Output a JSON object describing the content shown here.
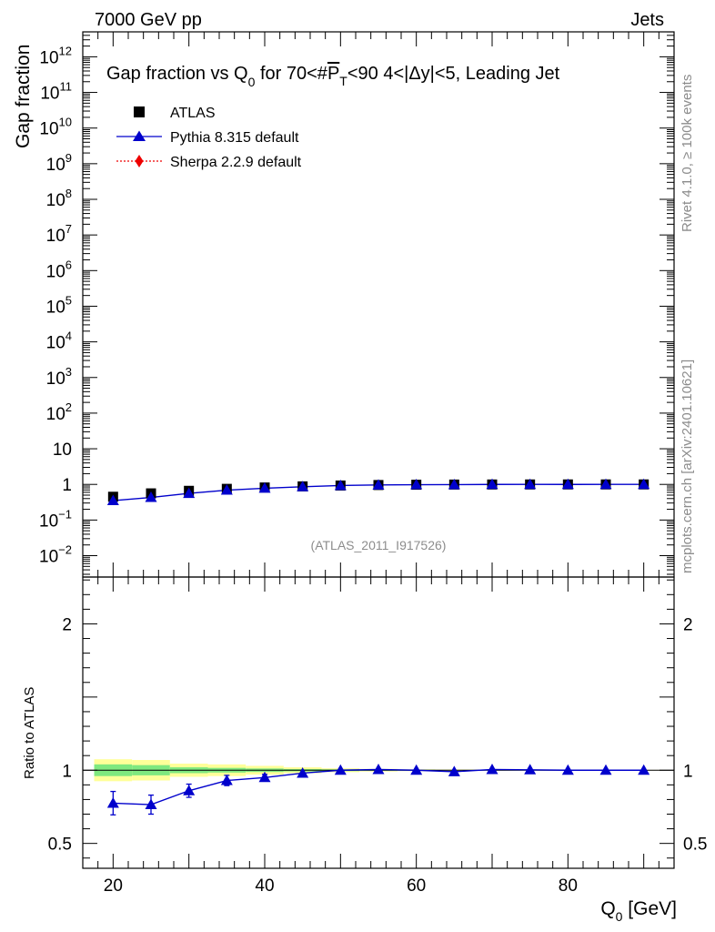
{
  "header": {
    "left": "7000 GeV pp",
    "right": "Jets"
  },
  "chart_data": {
    "type": "scatter",
    "title_parts": {
      "a": "Gap fraction vs Q",
      "sub0": "0",
      "b": " for 70<#",
      "p": "P",
      "t": "T",
      "c": "<90  4<|Δy|<5, Leading Jet"
    },
    "ylabel_main": "Gap fraction",
    "ylabel_ratio": "Ratio to ATLAS",
    "xlabel_parts": {
      "a": "Q",
      "sub": "0",
      "b": " [GeV]"
    },
    "xlim": [
      16,
      94
    ],
    "ylim_main_log10": [
      -2.6,
      12.7
    ],
    "ylim_ratio": [
      0.33,
      2.32
    ],
    "watermark": "(ATLAS_2011_I917526)",
    "side_text_top": "Rivet 4.1.0, ≥ 100k events",
    "side_text_bottom": "mcplots.cern.ch [arXiv:2401.10621]",
    "x_ticks": [
      "20",
      "40",
      "60",
      "80"
    ],
    "x_tick_values": [
      20,
      40,
      60,
      80
    ],
    "main_y_tick_labels": [
      {
        "exp": -2,
        "base": "10",
        "sup": "−2"
      },
      {
        "exp": -1,
        "base": "10",
        "sup": "−1"
      },
      {
        "exp": 0,
        "base": "1",
        "sup": ""
      },
      {
        "exp": 1,
        "base": "10",
        "sup": ""
      },
      {
        "exp": 2,
        "base": "10",
        "sup": "2"
      },
      {
        "exp": 3,
        "base": "10",
        "sup": "3"
      },
      {
        "exp": 4,
        "base": "10",
        "sup": "4"
      },
      {
        "exp": 5,
        "base": "10",
        "sup": "5"
      },
      {
        "exp": 6,
        "base": "10",
        "sup": "6"
      },
      {
        "exp": 7,
        "base": "10",
        "sup": "7"
      },
      {
        "exp": 8,
        "base": "10",
        "sup": "8"
      },
      {
        "exp": 9,
        "base": "10",
        "sup": "9"
      },
      {
        "exp": 10,
        "base": "10",
        "sup": "10"
      },
      {
        "exp": 11,
        "base": "10",
        "sup": "11"
      },
      {
        "exp": 12,
        "base": "10",
        "sup": "12"
      }
    ],
    "ratio_y_ticks": [
      {
        "value": 0.5,
        "label": "0.5"
      },
      {
        "value": 1,
        "label": "1"
      },
      {
        "value": 2,
        "label": "2"
      }
    ],
    "legend": [
      {
        "name": "ATLAS",
        "color": "#000000",
        "marker": "square"
      },
      {
        "name": "Pythia 8.315 default",
        "color": "#0000cc",
        "marker": "triangle"
      },
      {
        "name": "Sherpa 2.2.9 default",
        "color": "#ee0000",
        "marker": "diamond"
      }
    ],
    "x": [
      20,
      25,
      30,
      35,
      40,
      45,
      50,
      55,
      60,
      65,
      70,
      75,
      80,
      85,
      90
    ],
    "series": [
      {
        "name": "ATLAS",
        "values": [
          0.45,
          0.56,
          0.66,
          0.75,
          0.82,
          0.88,
          0.93,
          0.96,
          0.98,
          0.99,
          0.995,
          0.997,
          0.998,
          0.999,
          0.999
        ]
      },
      {
        "name": "Pythia 8.315 default",
        "values": [
          0.35,
          0.43,
          0.56,
          0.69,
          0.78,
          0.86,
          0.93,
          0.965,
          0.98,
          0.985,
          0.997,
          1.0,
          0.998,
          0.999,
          0.999
        ]
      }
    ],
    "ratio": {
      "name": "Pythia 8.315 default",
      "values": [
        0.775,
        0.765,
        0.86,
        0.93,
        0.95,
        0.98,
        1.0,
        1.005,
        1.0,
        0.99,
        1.005,
        1.003,
        1.0,
        1.0,
        1.0
      ],
      "err": [
        0.08,
        0.065,
        0.045,
        0.035,
        0.022,
        0.012,
        0.007,
        0.005,
        0.004,
        0.004,
        0.003,
        0.003,
        0.003,
        0.003,
        0.003
      ]
    },
    "bands": [
      {
        "x0": 17.5,
        "x1": 22.5,
        "stat": 0.04,
        "tot": 0.075
      },
      {
        "x0": 22.5,
        "x1": 27.5,
        "stat": 0.035,
        "tot": 0.07
      },
      {
        "x0": 27.5,
        "x1": 32.5,
        "stat": 0.02,
        "tot": 0.045
      },
      {
        "x0": 32.5,
        "x1": 37.5,
        "stat": 0.016,
        "tot": 0.04
      },
      {
        "x0": 37.5,
        "x1": 42.5,
        "stat": 0.012,
        "tot": 0.03
      },
      {
        "x0": 42.5,
        "x1": 47.5,
        "stat": 0.008,
        "tot": 0.02
      },
      {
        "x0": 47.5,
        "x1": 52.5,
        "stat": 0.006,
        "tot": 0.013
      },
      {
        "x0": 52.5,
        "x1": 57.5,
        "stat": 0.004,
        "tot": 0.009
      },
      {
        "x0": 57.5,
        "x1": 62.5,
        "stat": 0.003,
        "tot": 0.006
      },
      {
        "x0": 62.5,
        "x1": 67.5,
        "stat": 0.002,
        "tot": 0.005
      },
      {
        "x0": 67.5,
        "x1": 72.5,
        "stat": 0.002,
        "tot": 0.004
      },
      {
        "x0": 72.5,
        "x1": 77.5,
        "stat": 0.002,
        "tot": 0.003
      },
      {
        "x0": 77.5,
        "x1": 82.5,
        "stat": 0.001,
        "tot": 0.003
      },
      {
        "x0": 82.5,
        "x1": 87.5,
        "stat": 0.001,
        "tot": 0.002
      },
      {
        "x0": 87.5,
        "x1": 92.5,
        "stat": 0.001,
        "tot": 0.002
      }
    ],
    "colors": {
      "stat_band": "#7fe87f",
      "tot_band": "#ffff99",
      "pythia": "#0000cc",
      "sherpa": "#ee0000",
      "data": "#000000",
      "grey_text": "#8c8c8c"
    }
  }
}
